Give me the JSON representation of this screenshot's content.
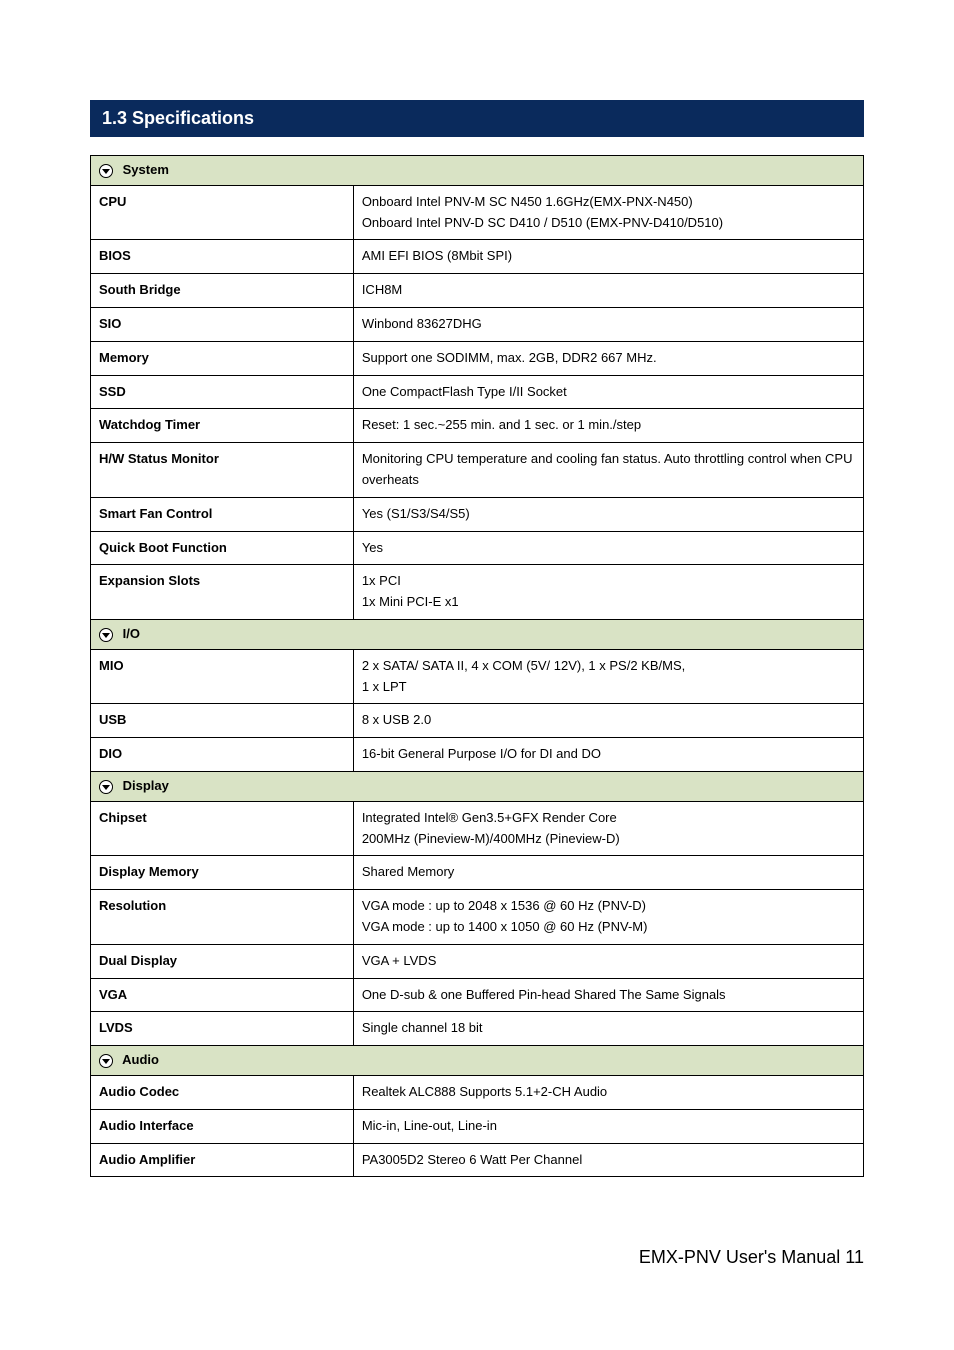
{
  "page": {
    "title_bar": "1.3 Specifications",
    "footer": "EMX-PNV  User's  Manual 11"
  },
  "sections": {
    "system": {
      "header": "System",
      "rows": {
        "cpu": {
          "label": "CPU",
          "value": "Onboard Intel PNV-M SC N450 1.6GHz(EMX-PNX-N450)\nOnboard Intel PNV-D SC D410 / D510 (EMX-PNV-D410/D510)"
        },
        "bios": {
          "label": "BIOS",
          "value": "AMI EFI BIOS (8Mbit SPI)"
        },
        "south_bridge": {
          "label": "South Bridge",
          "value": "ICH8M"
        },
        "sio": {
          "label": "SIO",
          "value": "Winbond 83627DHG"
        },
        "memory": {
          "label": "Memory",
          "value": "Support one SODIMM, max. 2GB, DDR2 667 MHz."
        },
        "ssd": {
          "label": "SSD",
          "value": "One CompactFlash Type I/II Socket"
        },
        "watchdog": {
          "label": "Watchdog Timer",
          "value": "Reset: 1 sec.~255 min. and 1 sec. or 1 min./step"
        },
        "health": {
          "label": "H/W Status Monitor",
          "value": "Monitoring CPU temperature and cooling fan status. Auto throttling control when CPU overheats"
        },
        "smart_fan": {
          "label": "Smart Fan Control",
          "value": "Yes (S1/S3/S4/S5)"
        },
        "quick_boot": {
          "label": "Quick Boot Function",
          "value": "Yes"
        },
        "expansion": {
          "label": "Expansion Slots",
          "value": "1x PCI\n1x Mini PCI-E x1"
        }
      }
    },
    "io": {
      "header": "I/O",
      "rows": {
        "mio": {
          "label": "MIO",
          "value": "2 x SATA/ SATA II, 4 x COM (5V/ 12V), 1 x PS/2 KB/MS,\n1 x LPT"
        },
        "usb": {
          "label": "USB",
          "value": "8 x USB 2.0"
        },
        "dio": {
          "label": "DIO",
          "value": "16-bit General Purpose I/O for DI and DO"
        }
      }
    },
    "display": {
      "header": "Display",
      "rows": {
        "chipset": {
          "label": "Chipset",
          "value": "Integrated Intel® Gen3.5+GFX Render Core\n200MHz (Pineview-M)/400MHz (Pineview-D)"
        },
        "mem": {
          "label": "Display Memory",
          "value": "Shared Memory"
        },
        "resolution": {
          "label": "Resolution",
          "value": "VGA mode : up to 2048 x 1536 @ 60 Hz (PNV-D)\nVGA mode : up to 1400 x 1050 @ 60 Hz (PNV-M)"
        },
        "dual": {
          "label": "Dual Display",
          "value": "VGA + LVDS"
        },
        "vga": {
          "label": "VGA",
          "value": "One D-sub & one Buffered Pin-head Shared The Same Signals"
        },
        "lvds": {
          "label": "LVDS",
          "value": "Single channel 18 bit"
        }
      }
    },
    "audio": {
      "header": "Audio",
      "rows": {
        "codec": {
          "label": "Audio Codec",
          "value": "Realtek ALC888 Supports 5.1+2-CH Audio"
        },
        "iface": {
          "label": "Audio Interface",
          "value": "Mic-in, Line-out, Line-in"
        },
        "amp": {
          "label": "Audio Amplifier",
          "value": "PA3005D2 Stereo 6 Watt Per Channel"
        }
      }
    }
  },
  "styles": {
    "title_bg": "#0a2a5c",
    "title_color": "#ffffff",
    "section_bg": "#d9e3c5",
    "border_color": "#000000",
    "body_bg": "#ffffff",
    "font_size_body": 13,
    "font_size_title": 18,
    "font_size_footer": 18,
    "label_col_width_pct": 34
  }
}
